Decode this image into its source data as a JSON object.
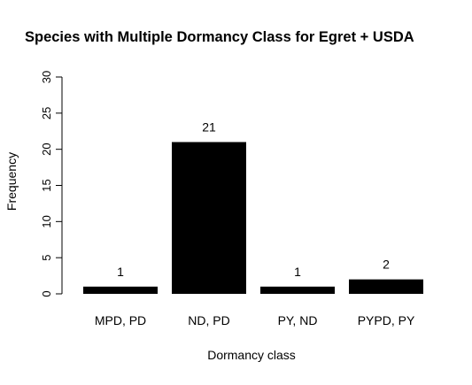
{
  "chart_data": {
    "type": "bar",
    "title": "Species with Multiple Dormancy Class for Egret + USDA",
    "xlabel": "Dormancy class",
    "ylabel": "Frequency",
    "categories": [
      "MPD, PD",
      "ND, PD",
      "PY, ND",
      "PYPD, PY"
    ],
    "values": [
      1,
      21,
      1,
      2
    ],
    "data_labels": [
      "1",
      "21",
      "1",
      "2"
    ],
    "ylim": [
      0,
      30
    ],
    "yticks": [
      0,
      5,
      10,
      15,
      20,
      25,
      30
    ],
    "ytick_labels": [
      "0",
      "5",
      "10",
      "15",
      "20",
      "25",
      "30"
    ],
    "bar_color": "#000000",
    "grid": false,
    "legend": "none"
  }
}
